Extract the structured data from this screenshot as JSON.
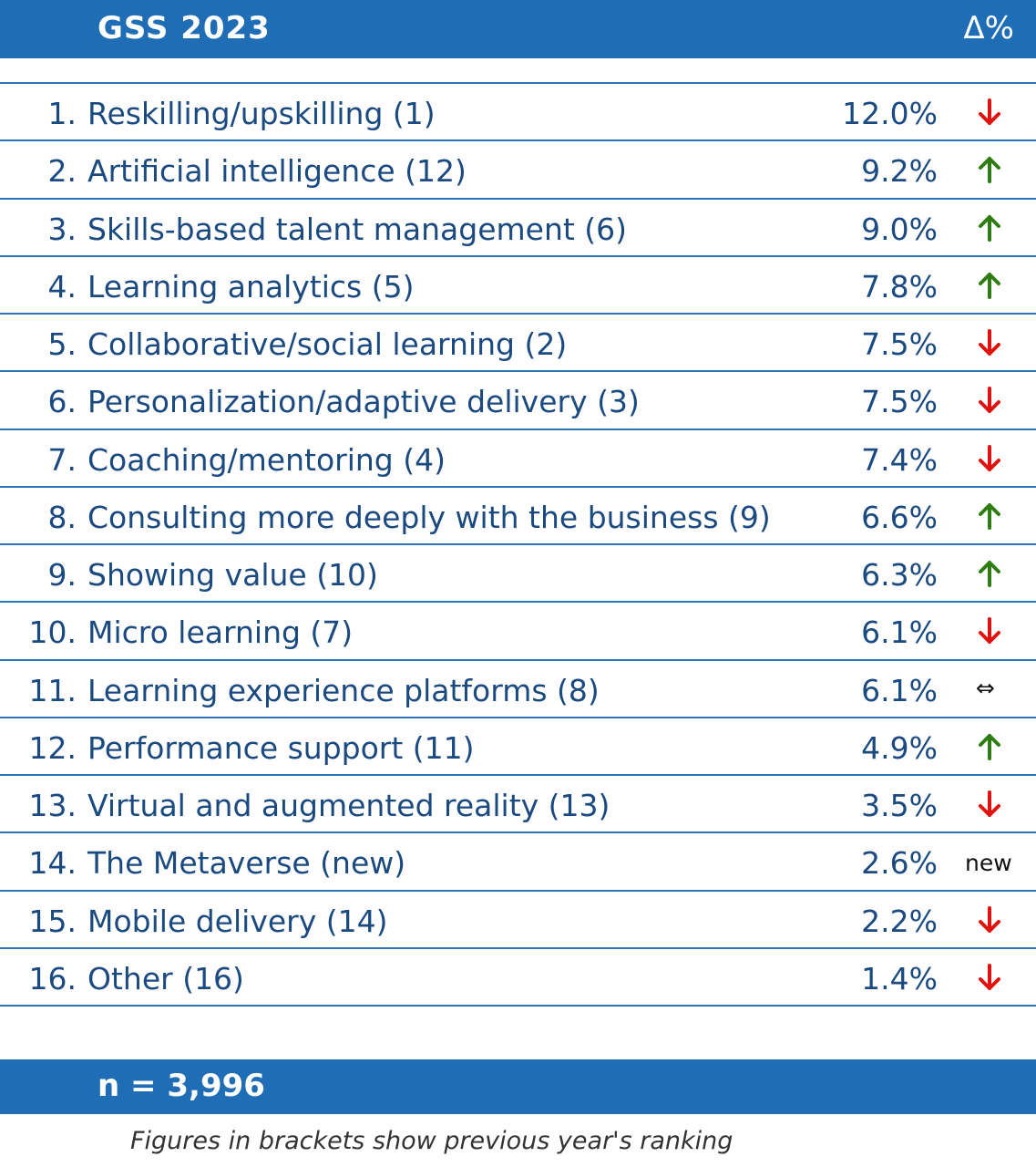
{
  "header": {
    "title": "GSS 2023",
    "delta_label": "Δ%"
  },
  "chart_data": {
    "type": "table",
    "columns": [
      "GSS 2023",
      "Δ%"
    ],
    "rows": [
      {
        "rank": "1.",
        "label": "Reskilling/upskilling (1)",
        "value": "12.0%",
        "trend": "down"
      },
      {
        "rank": "2.",
        "label": "Artificial intelligence (12)",
        "value": "9.2%",
        "trend": "up"
      },
      {
        "rank": "3.",
        "label": "Skills-based talent management (6)",
        "value": "9.0%",
        "trend": "up"
      },
      {
        "rank": "4.",
        "label": "Learning analytics (5)",
        "value": "7.8%",
        "trend": "up"
      },
      {
        "rank": "5.",
        "label": "Collaborative/social learning (2)",
        "value": "7.5%",
        "trend": "down"
      },
      {
        "rank": "6.",
        "label": "Personalization/adaptive delivery (3)",
        "value": "7.5%",
        "trend": "down"
      },
      {
        "rank": "7.",
        "label": "Coaching/mentoring (4)",
        "value": "7.4%",
        "trend": "down"
      },
      {
        "rank": "8.",
        "label": "Consulting more deeply with the business (9)",
        "value": "6.6%",
        "trend": "up"
      },
      {
        "rank": "9.",
        "label": "Showing value (10)",
        "value": "6.3%",
        "trend": "up"
      },
      {
        "rank": "10.",
        "label": "Micro learning (7)",
        "value": "6.1%",
        "trend": "down"
      },
      {
        "rank": "11.",
        "label": "Learning experience platforms (8)",
        "value": "6.1%",
        "trend": "same",
        "trend_text": "⇔"
      },
      {
        "rank": "12.",
        "label": "Performance support (11)",
        "value": "4.9%",
        "trend": "up"
      },
      {
        "rank": "13.",
        "label": "Virtual and augmented reality (13)",
        "value": "3.5%",
        "trend": "down"
      },
      {
        "rank": "14.",
        "label": "The Metaverse (new)",
        "value": "2.6%",
        "trend": "new",
        "trend_text": "new"
      },
      {
        "rank": "15.",
        "label": "Mobile delivery (14)",
        "value": "2.2%",
        "trend": "down"
      },
      {
        "rank": "16.",
        "label": "Other (16)",
        "value": "1.4%",
        "trend": "down"
      }
    ]
  },
  "footer": {
    "n_label": "n = 3,996"
  },
  "note": "Figures in brackets show previous year's ranking",
  "colors": {
    "header_bg": "#1f6db5",
    "text": "#1a4a80",
    "rule": "#2b74b8",
    "up": "#2e7d12",
    "down": "#e0120f"
  },
  "icons": {
    "up": "arrow-up-icon",
    "down": "arrow-down-icon"
  }
}
